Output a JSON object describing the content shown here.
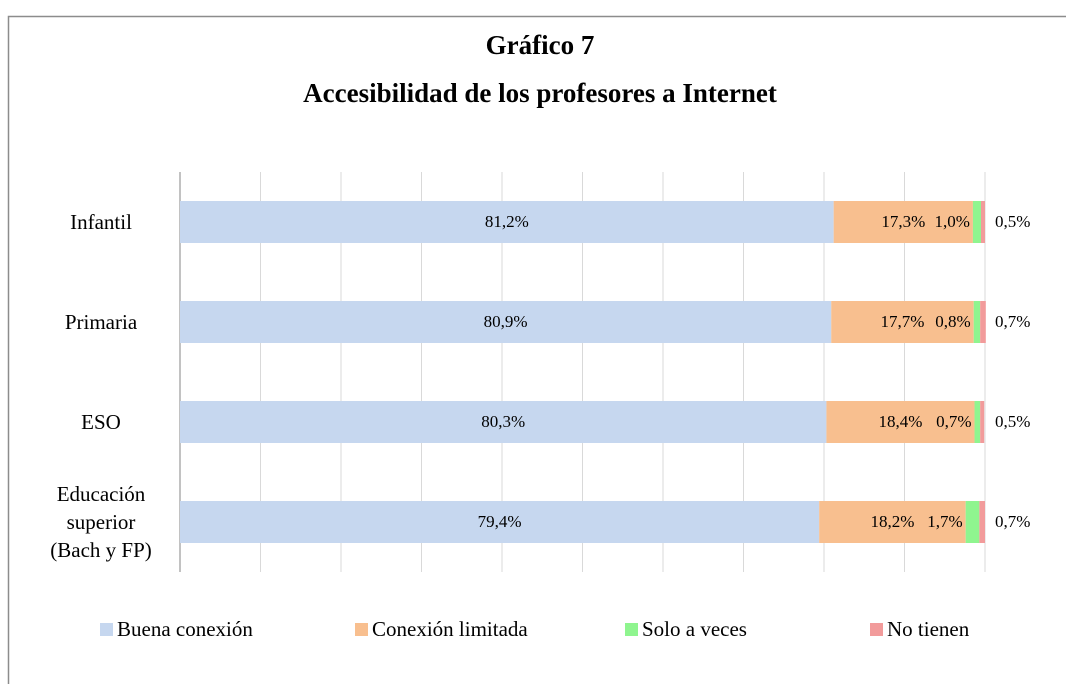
{
  "chart_data": {
    "type": "stacked_barh",
    "title": "Gráfico 7",
    "subtitle": "Accesibilidad de los profesores a Internet",
    "categories": [
      "Infantil",
      "Primaria",
      "ESO",
      "Educación superior (Bach y FP)"
    ],
    "series": [
      {
        "name": "Buena conexión",
        "color": "#c6d7ef",
        "values": [
          81.2,
          80.9,
          80.3,
          79.4
        ],
        "value_labels": [
          "81,2%",
          "80,9%",
          "80,3%",
          "79,4%"
        ]
      },
      {
        "name": "Conexión limitada",
        "color": "#f8bf8f",
        "values": [
          17.3,
          17.7,
          18.4,
          18.2
        ],
        "value_labels": [
          "17,3%",
          "17,7%",
          "18,4%",
          "18,2%"
        ]
      },
      {
        "name": "Solo a veces",
        "color": "#8ff58f",
        "values": [
          1.0,
          0.8,
          0.7,
          1.7
        ],
        "value_labels": [
          "1,0%",
          "0,8%",
          "0,7%",
          "1,7%"
        ]
      },
      {
        "name": "No tienen",
        "color": "#f29b9b",
        "values": [
          0.5,
          0.7,
          0.5,
          0.7
        ],
        "value_labels": [
          "0,5%",
          "0,7%",
          "0,5%",
          "0,7%"
        ]
      }
    ],
    "xlim": [
      0,
      100
    ],
    "xticks": [
      0,
      10,
      20,
      30,
      40,
      50,
      60,
      70,
      80,
      90,
      100
    ],
    "grid": true,
    "legend": "bottom"
  }
}
